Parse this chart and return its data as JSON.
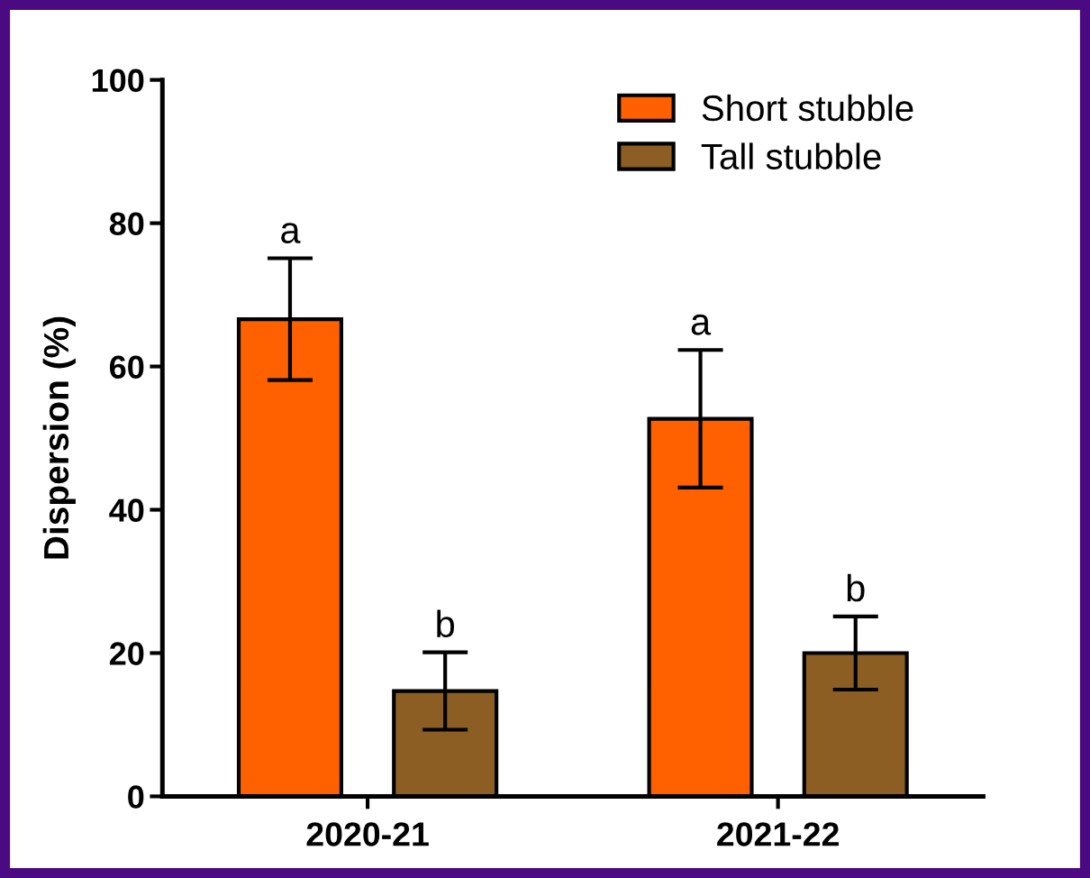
{
  "chart_data": {
    "type": "bar",
    "ylabel": "Dispersion (%)",
    "categories": [
      "2020-21",
      "2021-22"
    ],
    "series": [
      {
        "name": "Short stubble",
        "color": "#ff6000",
        "values": [
          66.6,
          52.7
        ],
        "errors": [
          8.5,
          9.6
        ]
      },
      {
        "name": "Tall stubble",
        "color": "#8c5e23",
        "values": [
          14.7,
          20.0
        ],
        "errors": [
          5.4,
          5.1
        ]
      }
    ],
    "ylim": [
      0,
      100
    ],
    "yticks": [
      0,
      20,
      40,
      60,
      80,
      100
    ],
    "grid": false,
    "legend": "top right",
    "annotations": [
      "a",
      "b",
      "a",
      "b"
    ]
  }
}
